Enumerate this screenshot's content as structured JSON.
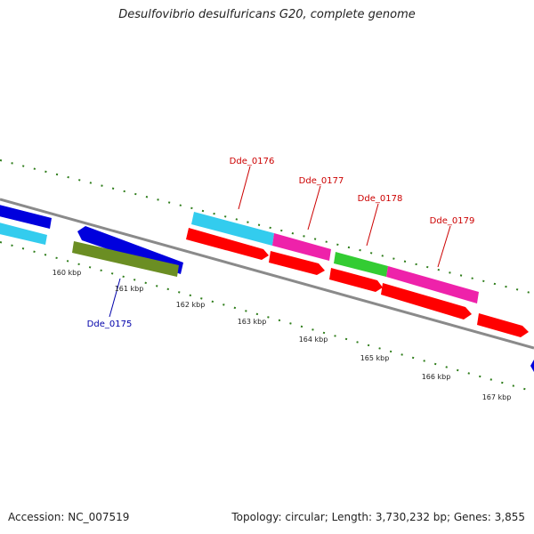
{
  "title": "Desulfovibrio desulfuricans G20, complete genome",
  "footer": {
    "accession": "Accession: NC_007519",
    "summary": "Topology: circular; Length: 3,730,232 bp; Genes: 3,855"
  },
  "colors": {
    "backbone": "#8a8a8a",
    "ticks": "#2e7d1a",
    "label_forward": "#cc0000",
    "label_reverse": "#0000aa",
    "red_cds": "#ff0000",
    "cyan_cds": "#33ccee",
    "pink_cds": "#ee22aa",
    "green_cds": "#33cc33",
    "olive_cds": "#6b8e23",
    "blue_cds": "#0000dd"
  },
  "scale": {
    "unit": "kbp",
    "tick_labels": [
      "160 kbp",
      "161 kbp",
      "162 kbp",
      "163 kbp",
      "164 kbp",
      "165 kbp",
      "166 kbp",
      "167 kbp"
    ]
  },
  "gene_labels": [
    {
      "text": "Dde_0175",
      "strand": "reverse"
    },
    {
      "text": "Dde_0176",
      "strand": "forward"
    },
    {
      "text": "Dde_0177",
      "strand": "forward"
    },
    {
      "text": "Dde_0178",
      "strand": "forward"
    },
    {
      "text": "Dde_0179",
      "strand": "forward"
    }
  ]
}
